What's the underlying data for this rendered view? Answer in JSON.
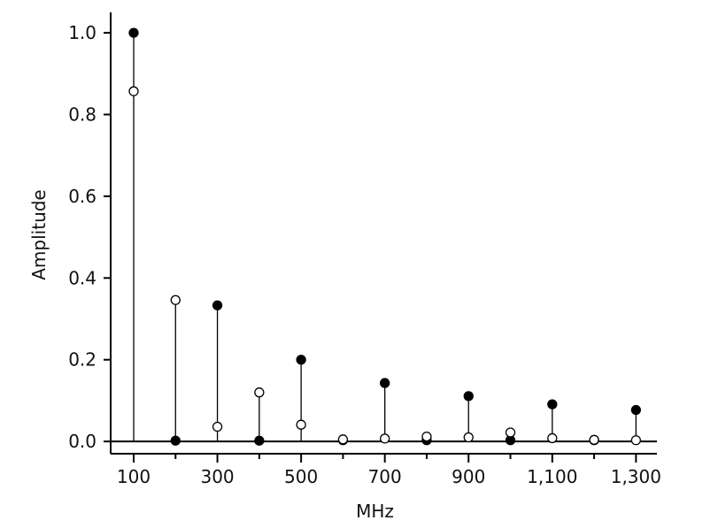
{
  "chart_data": {
    "type": "scatter",
    "xlabel": "MHz",
    "ylabel": "Amplitude",
    "xlim": [
      45,
      1350
    ],
    "ylim": [
      -0.03,
      1.05
    ],
    "xticks": [
      {
        "value": 100,
        "label": "100"
      },
      {
        "value": 300,
        "label": "300"
      },
      {
        "value": 500,
        "label": "500"
      },
      {
        "value": 700,
        "label": "700"
      },
      {
        "value": 900,
        "label": "900"
      },
      {
        "value": 1100,
        "label": "1,100"
      },
      {
        "value": 1300,
        "label": "1,300"
      }
    ],
    "yticks": [
      {
        "value": 0.0,
        "label": "0.0"
      },
      {
        "value": 0.2,
        "label": "0.2"
      },
      {
        "value": 0.4,
        "label": "0.4"
      },
      {
        "value": 0.6,
        "label": "0.6"
      },
      {
        "value": 0.8,
        "label": "0.8"
      },
      {
        "value": 1.0,
        "label": "1.0"
      }
    ],
    "minor_xticks": [
      200,
      400,
      600,
      800,
      1000,
      1200
    ],
    "x": [
      100,
      200,
      300,
      400,
      500,
      600,
      700,
      800,
      900,
      1000,
      1100,
      1200,
      1300
    ],
    "series": [
      {
        "marker": "filled",
        "color": "#000000",
        "values": [
          1.0,
          0.002,
          0.333,
          0.002,
          0.2,
          0.003,
          0.143,
          0.003,
          0.111,
          0.003,
          0.091,
          0.003,
          0.077
        ]
      },
      {
        "marker": "open",
        "color": "#000000",
        "values": [
          0.857,
          0.346,
          0.036,
          0.12,
          0.041,
          0.005,
          0.007,
          0.012,
          0.01,
          0.022,
          0.008,
          0.004,
          0.003
        ]
      }
    ],
    "grid": false,
    "stems": true
  }
}
